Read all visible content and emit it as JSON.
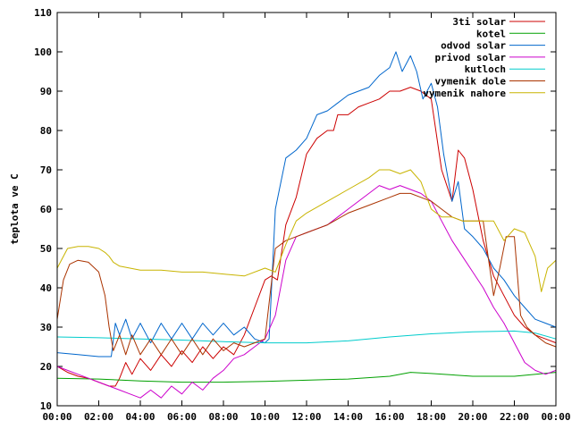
{
  "chart_data": {
    "type": "line",
    "title": "",
    "xlabel": "",
    "ylabel": "teplota ve C",
    "xlim": [
      0,
      24
    ],
    "ylim": [
      10,
      110
    ],
    "x_ticks": [
      "00:00",
      "02:00",
      "04:00",
      "06:00",
      "08:00",
      "10:00",
      "12:00",
      "14:00",
      "16:00",
      "18:00",
      "20:00",
      "22:00",
      "00:00"
    ],
    "y_ticks": [
      "10",
      "20",
      "30",
      "40",
      "50",
      "60",
      "70",
      "80",
      "90",
      "100",
      "110"
    ],
    "grid": false,
    "legend_position": "top-right",
    "series": [
      {
        "name": "3ti solar",
        "color": "#cc0000",
        "x": [
          0,
          0.5,
          1,
          1.5,
          2,
          2.5,
          2.8,
          3,
          3.3,
          3.6,
          4,
          4.5,
          5,
          5.5,
          6,
          6.5,
          7,
          7.5,
          8,
          8.5,
          9,
          9.5,
          10,
          10.3,
          10.6,
          11,
          11.5,
          12,
          12.5,
          13,
          13.3,
          13.5,
          14,
          14.5,
          15,
          15.5,
          16,
          16.5,
          17,
          17.5,
          18,
          18.5,
          19,
          19.3,
          19.6,
          20,
          20.5,
          21,
          21.5,
          22,
          22.5,
          23,
          23.5,
          24
        ],
        "y": [
          20,
          18.5,
          17.5,
          17,
          16,
          15,
          15,
          17,
          21,
          18,
          22,
          19,
          23,
          20,
          24,
          21,
          25,
          22,
          25,
          23,
          28,
          35,
          42,
          43,
          42,
          56,
          63,
          74,
          78,
          80,
          80,
          84,
          84,
          86,
          87,
          88,
          90,
          90,
          91,
          90,
          88,
          70,
          62,
          75,
          73,
          65,
          52,
          43,
          38,
          33,
          30,
          28,
          27,
          26
        ]
      },
      {
        "name": "kotel",
        "color": "#00a000",
        "x": [
          0,
          2,
          4,
          6,
          8,
          10,
          12,
          14,
          16,
          17,
          18,
          20,
          22,
          24
        ],
        "y": [
          17,
          16.8,
          16.3,
          16,
          16,
          16.2,
          16.5,
          16.8,
          17.5,
          18.5,
          18.2,
          17.5,
          17.5,
          18.5
        ]
      },
      {
        "name": "odvod solar",
        "color": "#0066cc",
        "x": [
          0,
          1,
          2,
          2.6,
          2.8,
          3,
          3.3,
          3.6,
          4,
          4.5,
          5,
          5.5,
          6,
          6.5,
          7,
          7.5,
          8,
          8.5,
          9,
          9.5,
          10,
          10.2,
          10.5,
          11,
          11.5,
          12,
          12.5,
          13,
          13.5,
          14,
          14.5,
          15,
          15.5,
          16,
          16.3,
          16.6,
          17,
          17.3,
          17.6,
          18,
          18.3,
          18.6,
          19,
          19.3,
          19.6,
          20,
          20.5,
          21,
          21.5,
          22,
          22.5,
          23,
          23.5,
          24
        ],
        "y": [
          23.5,
          23,
          22.5,
          22.5,
          31,
          28,
          32,
          27,
          31,
          26,
          31,
          27,
          31,
          27,
          31,
          28,
          31,
          28,
          30,
          27,
          26,
          27,
          60,
          73,
          75,
          78,
          84,
          85,
          87,
          89,
          90,
          91,
          94,
          96,
          100,
          95,
          99,
          95,
          88,
          92,
          86,
          74,
          62,
          67,
          55,
          53,
          50,
          45,
          42,
          38,
          35,
          32,
          31,
          30
        ]
      },
      {
        "name": "privod solar",
        "color": "#cc00cc",
        "x": [
          0,
          0.5,
          1,
          1.5,
          2,
          2.5,
          3,
          3.5,
          4,
          4.5,
          5,
          5.5,
          6,
          6.5,
          7,
          7.5,
          8,
          8.5,
          9,
          9.5,
          10,
          10.5,
          11,
          11.5,
          12,
          13,
          14,
          15,
          15.5,
          16,
          16.5,
          17,
          17.5,
          18,
          18.5,
          19,
          19.5,
          20,
          20.5,
          21,
          21.5,
          22,
          22.5,
          23,
          23.5,
          24
        ],
        "y": [
          20,
          19,
          18,
          17,
          16,
          15,
          14,
          13,
          12,
          14,
          12,
          15,
          13,
          16,
          14,
          17,
          19,
          22,
          23,
          25,
          27,
          33,
          47,
          53,
          54,
          56,
          60,
          64,
          66,
          65,
          66,
          65,
          64,
          62,
          57,
          52,
          48,
          44,
          40,
          35,
          31,
          26,
          21,
          19,
          18,
          19
        ]
      },
      {
        "name": "kutloch",
        "color": "#00cccc",
        "x": [
          0,
          2,
          4,
          6,
          8,
          10,
          12,
          14,
          16,
          18,
          20,
          22,
          23,
          24
        ],
        "y": [
          27.5,
          27.3,
          27,
          26.7,
          26.3,
          26,
          26,
          26.5,
          27.5,
          28.3,
          28.8,
          29,
          28.5,
          27
        ]
      },
      {
        "name": "vymenik dole",
        "color": "#aa3300",
        "x": [
          0,
          0.3,
          0.6,
          1,
          1.5,
          2,
          2.3,
          2.5,
          2.7,
          3,
          3.3,
          3.6,
          4,
          4.5,
          5,
          5.5,
          6,
          6.5,
          7,
          7.5,
          8,
          8.5,
          9,
          9.5,
          10,
          10.5,
          11,
          11.5,
          12,
          13,
          14,
          15,
          16,
          16.5,
          17,
          17.5,
          18,
          18.5,
          19,
          19.5,
          20,
          20.5,
          21,
          21.3,
          21.6,
          22,
          22.3,
          22.6,
          23,
          23.5,
          24
        ],
        "y": [
          32,
          42,
          46,
          47,
          46.5,
          44,
          38,
          30,
          24,
          28,
          23,
          28,
          23,
          27,
          23,
          27,
          23,
          27,
          23,
          27,
          24,
          26,
          25,
          26,
          27,
          50,
          52,
          53,
          54,
          56,
          59,
          61,
          63,
          64,
          64,
          63,
          62,
          60,
          58,
          57,
          57,
          57,
          38,
          45,
          53,
          53,
          33,
          30,
          28,
          26,
          25
        ]
      },
      {
        "name": "vymenik nahore",
        "color": "#c8b400",
        "x": [
          0,
          0.5,
          1,
          1.5,
          2,
          2.3,
          2.5,
          2.7,
          3,
          3.5,
          4,
          5,
          6,
          7,
          8,
          9,
          10,
          10.5,
          11,
          11.5,
          12,
          13,
          14,
          15,
          15.5,
          16,
          16.5,
          17,
          17.5,
          18,
          18.5,
          19,
          19.5,
          20,
          20.5,
          21,
          21.5,
          22,
          22.5,
          23,
          23.3,
          23.6,
          24
        ],
        "y": [
          45,
          50,
          50.5,
          50.5,
          50,
          49,
          48,
          46.5,
          45.5,
          45,
          44.5,
          44.5,
          44,
          44,
          43.5,
          43,
          45,
          44,
          51,
          57,
          59,
          62,
          65,
          68,
          70,
          70,
          69,
          70,
          67,
          60,
          58,
          58,
          57,
          57,
          57,
          57,
          52,
          55,
          54,
          48,
          39,
          45,
          47
        ]
      }
    ]
  }
}
